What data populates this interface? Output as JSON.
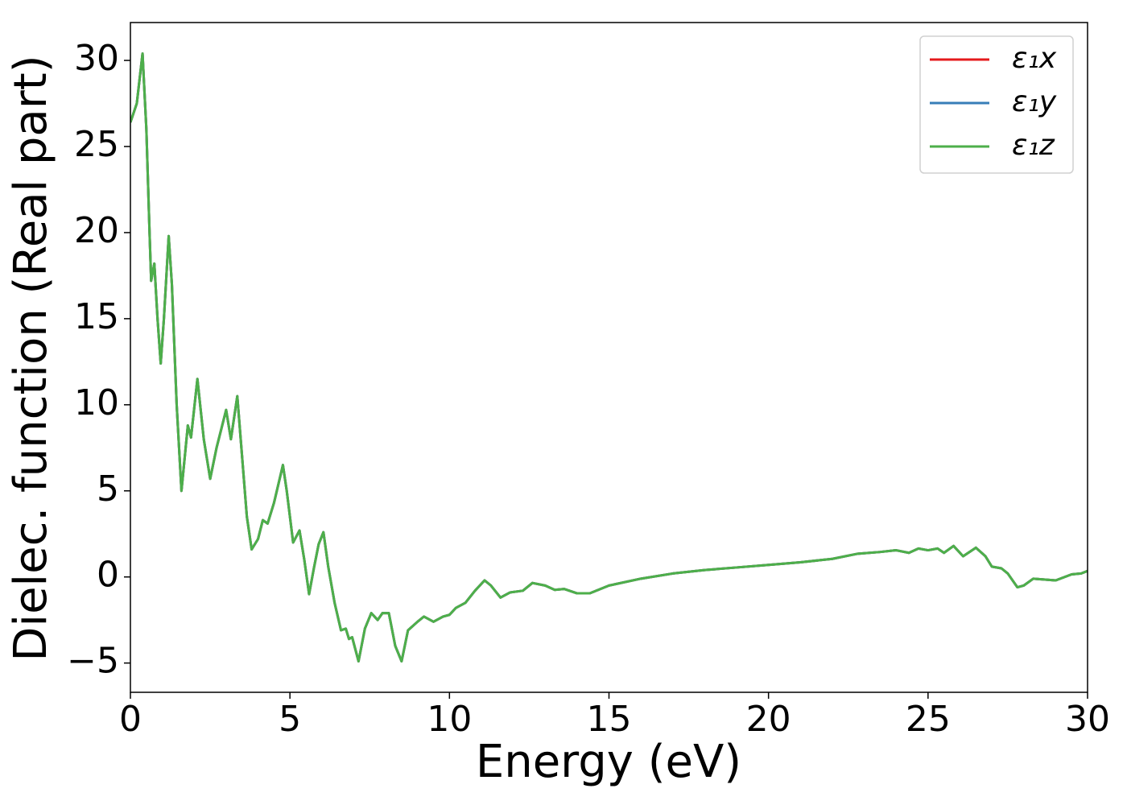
{
  "chart_data": {
    "type": "line",
    "xlabel": "Energy (eV)",
    "ylabel": "Dielec. function (Real part)",
    "x": [
      0,
      0.2,
      0.38,
      0.5,
      0.6,
      0.65,
      0.75,
      0.85,
      0.95,
      1.05,
      1.2,
      1.3,
      1.45,
      1.6,
      1.8,
      1.9,
      2.1,
      2.3,
      2.5,
      2.7,
      3.0,
      3.15,
      3.35,
      3.5,
      3.65,
      3.8,
      4.0,
      4.15,
      4.3,
      4.5,
      4.78,
      4.9,
      5.1,
      5.3,
      5.45,
      5.6,
      5.75,
      5.9,
      6.05,
      6.2,
      6.4,
      6.6,
      6.75,
      6.85,
      6.95,
      7.15,
      7.35,
      7.55,
      7.75,
      7.9,
      8.1,
      8.3,
      8.5,
      8.7,
      9.0,
      9.2,
      9.5,
      9.8,
      10.0,
      10.2,
      10.5,
      10.8,
      11.1,
      11.3,
      11.6,
      11.9,
      12.3,
      12.6,
      13.0,
      13.3,
      13.6,
      14.0,
      14.4,
      15.0,
      16.0,
      17.0,
      18.0,
      19.0,
      20.0,
      21.0,
      22.0,
      22.8,
      23.5,
      24.0,
      24.4,
      24.7,
      25.0,
      25.3,
      25.5,
      25.8,
      26.1,
      26.5,
      26.8,
      27.0,
      27.3,
      27.5,
      27.8,
      28.0,
      28.3,
      29.0,
      29.5,
      29.8,
      30
    ],
    "series": [
      {
        "name": "ε₁x",
        "color": "#e41a1c",
        "values": [
          26.4,
          27.5,
          30.4,
          26,
          20,
          17.2,
          18.2,
          15,
          12.4,
          15,
          19.8,
          17,
          10,
          5,
          8.8,
          8.1,
          11.5,
          8,
          5.7,
          7.5,
          9.7,
          8,
          10.5,
          7,
          3.5,
          1.6,
          2.2,
          3.3,
          3.1,
          4.3,
          6.5,
          5,
          2.0,
          2.7,
          1.0,
          -1.0,
          0.5,
          1.9,
          2.6,
          0.6,
          -1.5,
          -3.1,
          -3.0,
          -3.6,
          -3.5,
          -4.9,
          -3.0,
          -2.1,
          -2.5,
          -2.1,
          -2.1,
          -4,
          -4.9,
          -3.1,
          -2.6,
          -2.3,
          -2.6,
          -2.3,
          -2.2,
          -1.8,
          -1.5,
          -0.8,
          -0.2,
          -0.5,
          -1.2,
          -0.9,
          -0.8,
          -0.35,
          -0.5,
          -0.75,
          -0.7,
          -0.95,
          -0.95,
          -0.5,
          -0.1,
          0.2,
          0.4,
          0.55,
          0.7,
          0.85,
          1.05,
          1.35,
          1.45,
          1.55,
          1.4,
          1.65,
          1.55,
          1.65,
          1.4,
          1.8,
          1.2,
          1.7,
          1.2,
          0.6,
          0.5,
          0.2,
          -0.6,
          -0.5,
          -0.1,
          -0.2,
          0.15,
          0.2,
          0.35
        ]
      },
      {
        "name": "ε₁y",
        "color": "#377eb8",
        "values": [
          26.4,
          27.5,
          30.4,
          26,
          20,
          17.2,
          18.2,
          15,
          12.4,
          15,
          19.8,
          17,
          10,
          5,
          8.8,
          8.1,
          11.5,
          8,
          5.7,
          7.5,
          9.7,
          8,
          10.5,
          7,
          3.5,
          1.6,
          2.2,
          3.3,
          3.1,
          4.3,
          6.5,
          5,
          2.0,
          2.7,
          1.0,
          -1.0,
          0.5,
          1.9,
          2.6,
          0.6,
          -1.5,
          -3.1,
          -3.0,
          -3.6,
          -3.5,
          -4.9,
          -3.0,
          -2.1,
          -2.5,
          -2.1,
          -2.1,
          -4,
          -4.9,
          -3.1,
          -2.6,
          -2.3,
          -2.6,
          -2.3,
          -2.2,
          -1.8,
          -1.5,
          -0.8,
          -0.2,
          -0.5,
          -1.2,
          -0.9,
          -0.8,
          -0.35,
          -0.5,
          -0.75,
          -0.7,
          -0.95,
          -0.95,
          -0.5,
          -0.1,
          0.2,
          0.4,
          0.55,
          0.7,
          0.85,
          1.05,
          1.35,
          1.45,
          1.55,
          1.4,
          1.65,
          1.55,
          1.65,
          1.4,
          1.8,
          1.2,
          1.7,
          1.2,
          0.6,
          0.5,
          0.2,
          -0.6,
          -0.5,
          -0.1,
          -0.2,
          0.15,
          0.2,
          0.35
        ]
      },
      {
        "name": "ε₁z",
        "color": "#4daf4a",
        "values": [
          26.4,
          27.5,
          30.4,
          26,
          20,
          17.2,
          18.2,
          15,
          12.4,
          15,
          19.8,
          17,
          10,
          5,
          8.8,
          8.1,
          11.5,
          8,
          5.7,
          7.5,
          9.7,
          8,
          10.5,
          7,
          3.5,
          1.6,
          2.2,
          3.3,
          3.1,
          4.3,
          6.5,
          5,
          2.0,
          2.7,
          1.0,
          -1.0,
          0.5,
          1.9,
          2.6,
          0.6,
          -1.5,
          -3.1,
          -3.0,
          -3.6,
          -3.5,
          -4.9,
          -3.0,
          -2.1,
          -2.5,
          -2.1,
          -2.1,
          -4,
          -4.9,
          -3.1,
          -2.6,
          -2.3,
          -2.6,
          -2.3,
          -2.2,
          -1.8,
          -1.5,
          -0.8,
          -0.2,
          -0.5,
          -1.2,
          -0.9,
          -0.8,
          -0.35,
          -0.5,
          -0.75,
          -0.7,
          -0.95,
          -0.95,
          -0.5,
          -0.1,
          0.2,
          0.4,
          0.55,
          0.7,
          0.85,
          1.05,
          1.35,
          1.45,
          1.55,
          1.4,
          1.65,
          1.55,
          1.65,
          1.4,
          1.8,
          1.2,
          1.7,
          1.2,
          0.6,
          0.5,
          0.2,
          -0.6,
          -0.5,
          -0.1,
          -0.2,
          0.15,
          0.2,
          0.35
        ]
      }
    ],
    "xlim": [
      0,
      30
    ],
    "xticks": [
      0,
      5,
      10,
      15,
      20,
      25,
      30
    ],
    "ylim": [
      -6.7,
      32.2
    ],
    "yticks": [
      {
        "value": -5,
        "label": "−5"
      },
      0,
      5,
      10,
      15,
      20,
      25,
      30
    ],
    "legend": "upper right"
  }
}
